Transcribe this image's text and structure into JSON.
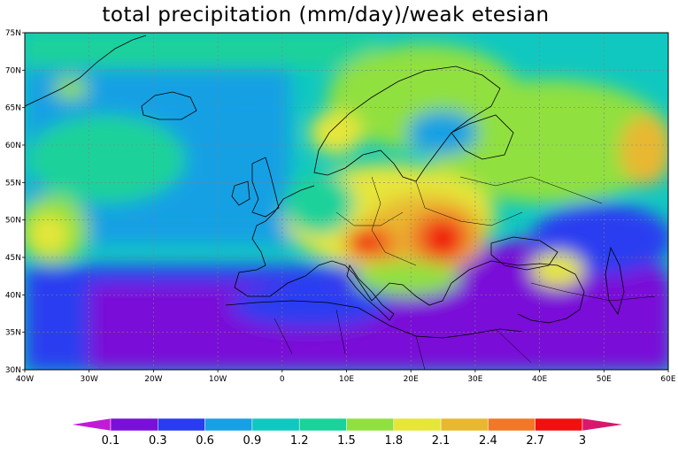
{
  "title": "total precipitation (mm/day)/weak etesian",
  "lat_labels": [
    "75N",
    "70N",
    "65N",
    "60N",
    "55N",
    "50N",
    "45N",
    "40N",
    "35N",
    "30N"
  ],
  "lon_labels": [
    "40W",
    "30W",
    "20W",
    "10W",
    "0",
    "10E",
    "20E",
    "30E",
    "40E",
    "50E",
    "60E"
  ],
  "colorbar": {
    "levels": [
      "0.1",
      "0.3",
      "0.6",
      "0.9",
      "1.2",
      "1.5",
      "1.8",
      "2.1",
      "2.4",
      "2.7",
      "3"
    ],
    "colors": [
      "#c31ad8",
      "#7a10d8",
      "#2a3cf0",
      "#18a0e4",
      "#10c8c0",
      "#1ad29a",
      "#90e040",
      "#e6e63a",
      "#e8b830",
      "#f07828",
      "#f01010",
      "#d8186e"
    ]
  },
  "chart_data": {
    "type": "heatmap",
    "title": "total precipitation (mm/day)/weak etesian",
    "units": "mm/day",
    "lon_range": [
      -40,
      60
    ],
    "lat_range": [
      30,
      75
    ],
    "grid": true,
    "levels": [
      0.1,
      0.3,
      0.6,
      0.9,
      1.2,
      1.5,
      1.8,
      2.1,
      2.4,
      2.7,
      3
    ]
  }
}
